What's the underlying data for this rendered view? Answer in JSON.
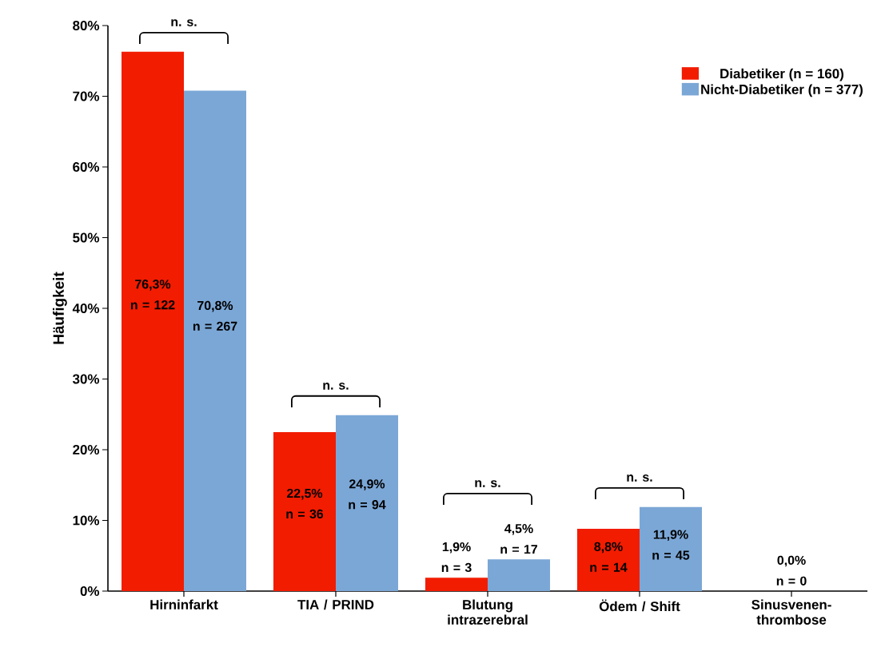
{
  "chart_data": {
    "type": "bar",
    "ylabel": "Häufigkeit",
    "categories": [
      "Hirninfarkt",
      "TIA / PRIND",
      "Blutung intrazerebral",
      "Ödem / Shift",
      "Sinusvenen-thrombose"
    ],
    "series": [
      {
        "name": "Diabetiker (n = 160)",
        "color": "#f21c00",
        "values": [
          76.3,
          22.5,
          1.9,
          8.8,
          0.0
        ],
        "value_labels": [
          "76,3% n = 122",
          "22,5% n = 36",
          "1,9% n = 3",
          "8,8% n = 14",
          "0,0% n = 0"
        ]
      },
      {
        "name": "Nicht-Diabetiker (n = 377)",
        "color": "#7ba7d6",
        "values": [
          70.8,
          24.9,
          4.5,
          11.9,
          0.0
        ],
        "value_labels": [
          "70,8% n = 267",
          "24,9% n = 94",
          "4,5% n = 17",
          "11,9% n = 45",
          null
        ]
      }
    ],
    "ylim": [
      0,
      80
    ],
    "yticks": [
      {
        "value": 0,
        "label": "0%"
      },
      {
        "value": 10,
        "label": "10%"
      },
      {
        "value": 20,
        "label": "20%"
      },
      {
        "value": 30,
        "label": "30%"
      },
      {
        "value": 40,
        "label": "40%"
      },
      {
        "value": 50,
        "label": "50%"
      },
      {
        "value": 60,
        "label": "60%"
      },
      {
        "value": 70,
        "label": "70%"
      },
      {
        "value": 80,
        "label": "80%"
      }
    ],
    "legend": "top right",
    "annotations": [
      "n. s.",
      "n. s.",
      "n. s.",
      "n. s."
    ]
  }
}
